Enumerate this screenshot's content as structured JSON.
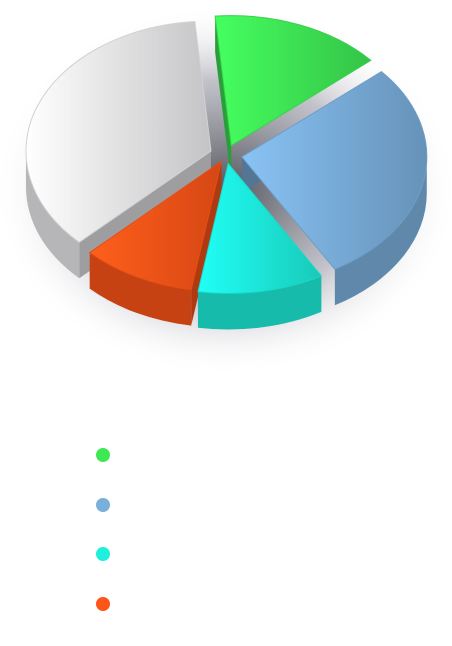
{
  "chart_data": {
    "type": "pie",
    "title": "",
    "style": "3d-exploded",
    "legend_position": "bottom-left",
    "slices": [
      {
        "label": "",
        "value": 15,
        "color": "#3ee855"
      },
      {
        "label": "",
        "value": 28,
        "color": "#7aaedb"
      },
      {
        "label": "",
        "value": 11,
        "color": "#1df0dc"
      },
      {
        "label": "",
        "value": 10,
        "color": "#ff5518"
      },
      {
        "label": "",
        "value": 36,
        "color": "#e9e9ec"
      }
    ]
  }
}
